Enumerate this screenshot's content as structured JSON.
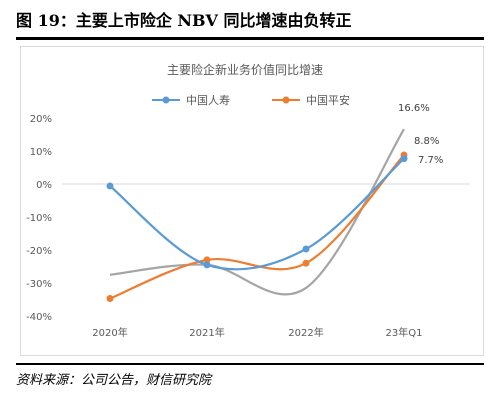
{
  "figure_title": "图 19：主要上市险企 NBV 同比增速由负转正",
  "source_note": "资料来源：公司公告，财信研究院",
  "chart_data": {
    "type": "line",
    "title": "主要险企新业务价值同比增速",
    "categories": [
      "2020年",
      "2021年",
      "2022年",
      "23年Q1"
    ],
    "ylim": [
      -40,
      20
    ],
    "yticks": [
      20,
      10,
      0,
      -10,
      -20,
      -30,
      -40
    ],
    "ytick_labels": [
      "20%",
      "10%",
      "0%",
      "-10%",
      "-20%",
      "-30%",
      "-40%"
    ],
    "grid": false,
    "smooth": true,
    "legend_position": "top",
    "series": [
      {
        "name": "中国人寿",
        "color": "#5b9bd5",
        "marker": true,
        "values": [
          -0.6,
          -24.5,
          -19.7,
          7.7
        ],
        "end_label": "7.7%"
      },
      {
        "name": "中国平安",
        "color": "#ed7d31",
        "marker": true,
        "values": [
          -34.7,
          -23.0,
          -24.0,
          8.8
        ],
        "end_label": "8.8%"
      },
      {
        "color": "#a5a5a5",
        "marker": false,
        "values": [
          -27.5,
          -24.5,
          -31.5,
          16.6
        ],
        "end_label": "16.6%"
      }
    ]
  }
}
